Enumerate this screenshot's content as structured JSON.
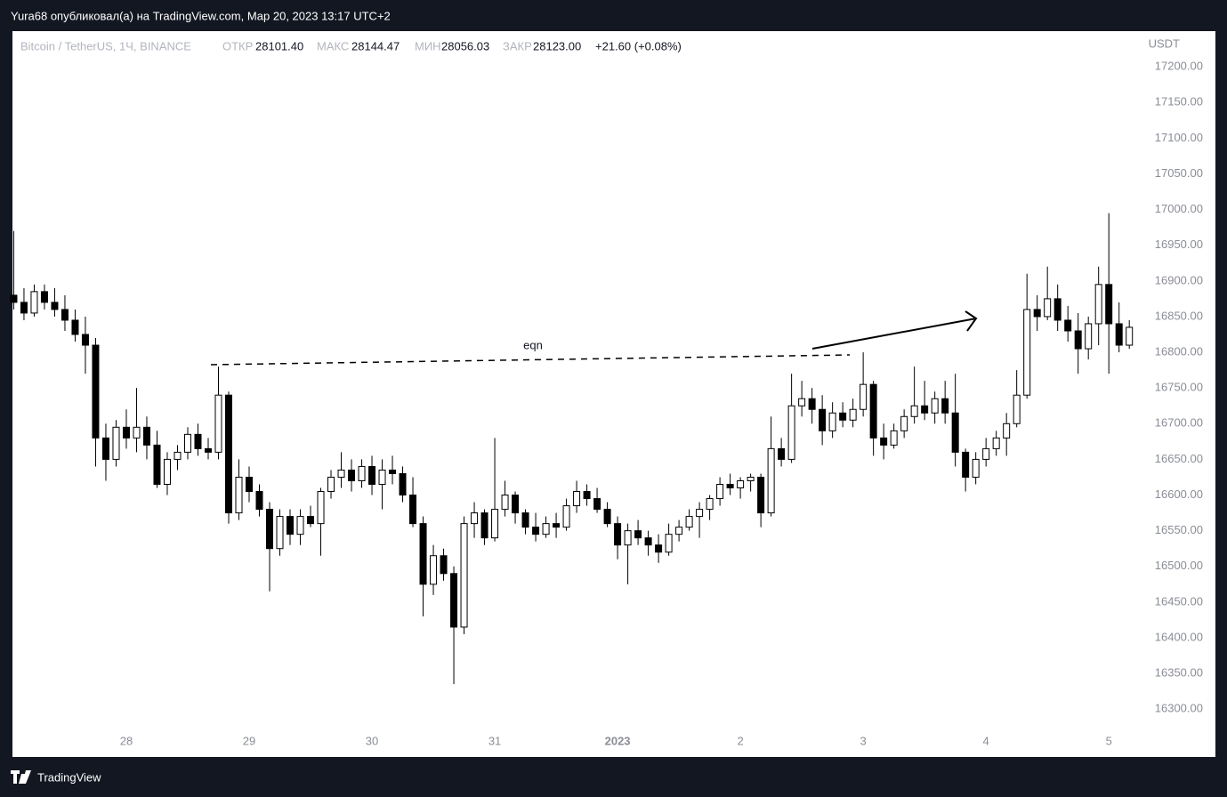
{
  "header": "Yura68 опубликовал(а) на TradingView.com, Мар 20, 2023 13:17 UTC+2",
  "footer": {
    "brand": "TradingView"
  },
  "chart_data": {
    "type": "candlestick",
    "symbol": "Bitcoin / TetherUS, 1Ч, BINANCE",
    "legend": {
      "open_label": "ОТКР",
      "open": "28101.40",
      "high_label": "МАКС",
      "high": "28144.47",
      "low_label": "МИН",
      "low": "28056.03",
      "close_label": "ЗАКР",
      "close": "28123.00",
      "change": "+21.60 (+0.08%)"
    },
    "y_unit": "USDT",
    "annotation": "eqn",
    "up_color": "#ffffff",
    "down_color": "#000000",
    "border_color": "#000000",
    "categories": [
      null,
      null,
      null,
      null,
      null,
      null,
      null,
      null,
      null,
      null,
      null,
      null,
      null,
      null,
      null,
      null,
      null,
      null,
      null,
      null,
      null,
      null,
      null,
      null,
      null,
      null,
      null,
      null,
      null,
      null,
      null,
      null,
      null,
      null,
      null,
      null,
      null,
      null,
      null,
      null,
      null,
      null,
      null,
      null,
      null,
      null,
      null,
      null,
      null,
      null,
      null,
      null,
      null,
      null,
      null,
      null,
      null,
      null,
      null,
      null,
      null,
      null,
      null,
      null,
      null,
      null,
      null,
      null,
      null,
      null,
      null,
      null,
      null,
      null,
      null,
      null,
      null,
      null,
      null,
      null,
      null,
      null,
      null,
      null,
      null,
      null,
      null,
      null,
      null,
      null,
      null,
      null,
      null,
      null,
      null,
      null,
      null,
      null,
      null,
      null,
      null,
      null,
      null,
      null,
      null,
      null,
      null,
      null,
      null,
      null
    ],
    "open": [
      16880,
      16870,
      16855,
      16885,
      16870,
      16860,
      16845,
      16825,
      16810,
      16680,
      16650,
      16695,
      16680,
      16695,
      16670,
      16615,
      16650,
      16660,
      16685,
      16665,
      16660,
      16740,
      16575,
      16625,
      16605,
      16580,
      16525,
      16570,
      16545,
      16570,
      16560,
      16605,
      16625,
      16635,
      16620,
      16640,
      16615,
      16635,
      16630,
      16600,
      16560,
      16475,
      16515,
      16490,
      16415,
      16560,
      16575,
      16540,
      16580,
      16600,
      16575,
      16555,
      16545,
      16560,
      16555,
      16585,
      16605,
      16595,
      16580,
      16560,
      16530,
      16550,
      16540,
      16530,
      16520,
      16545,
      16555,
      16570,
      16580,
      16595,
      16615,
      16610,
      16620,
      16625,
      16575,
      16665,
      16650,
      16725,
      16735,
      16720,
      16690,
      16715,
      16705,
      16720,
      16755,
      16680,
      16670,
      16690,
      16710,
      16725,
      16715,
      16735,
      16715,
      16660,
      16625,
      16650,
      16665,
      16680,
      16700,
      16740,
      16860,
      16850,
      16875,
      16845,
      16830,
      16805,
      16840,
      16895,
      16840,
      16810
    ],
    "high": [
      16970,
      16890,
      16895,
      16895,
      16890,
      16880,
      16860,
      16850,
      16820,
      16700,
      16705,
      16720,
      16750,
      16710,
      16690,
      16660,
      16670,
      16695,
      16700,
      16680,
      16780,
      16745,
      16650,
      16640,
      16615,
      16590,
      16580,
      16580,
      16580,
      16585,
      16610,
      16635,
      16660,
      16650,
      16650,
      16655,
      16650,
      16655,
      16640,
      16625,
      16570,
      16530,
      16525,
      16500,
      16570,
      16590,
      16580,
      16680,
      16620,
      16605,
      16580,
      16575,
      16570,
      16575,
      16595,
      16620,
      16615,
      16610,
      16590,
      16570,
      16560,
      16565,
      16550,
      16545,
      16560,
      16565,
      16580,
      16590,
      16600,
      16625,
      16630,
      16625,
      16630,
      16630,
      16710,
      16680,
      16770,
      16760,
      16750,
      16740,
      16730,
      16730,
      16735,
      16800,
      16760,
      16700,
      16700,
      16720,
      16780,
      16760,
      16745,
      16760,
      16770,
      16665,
      16660,
      16680,
      16690,
      16715,
      16775,
      16910,
      16880,
      16920,
      16895,
      16865,
      16855,
      16850,
      16920,
      16995,
      16870,
      16845
    ],
    "low": [
      16860,
      16845,
      16850,
      16860,
      16850,
      16830,
      16815,
      16770,
      16640,
      16620,
      16640,
      16665,
      16660,
      16650,
      16610,
      16600,
      16635,
      16650,
      16655,
      16650,
      16650,
      16560,
      16565,
      16590,
      16570,
      16465,
      16515,
      16530,
      16530,
      16555,
      16515,
      16595,
      16610,
      16605,
      16610,
      16600,
      16580,
      16615,
      16590,
      16555,
      16430,
      16460,
      16480,
      16335,
      16405,
      16540,
      16530,
      16535,
      16570,
      16560,
      16545,
      16535,
      16540,
      16540,
      16550,
      16575,
      16585,
      16575,
      16555,
      16510,
      16475,
      16530,
      16515,
      16505,
      16515,
      16535,
      16550,
      16540,
      16565,
      16585,
      16600,
      16595,
      16605,
      16555,
      16570,
      16640,
      16645,
      16710,
      16700,
      16670,
      16680,
      16695,
      16695,
      16710,
      16655,
      16650,
      16665,
      16680,
      16700,
      16705,
      16700,
      16700,
      16640,
      16605,
      16615,
      16640,
      16655,
      16655,
      16695,
      16735,
      16830,
      16845,
      16830,
      16815,
      16770,
      16790,
      16810,
      16770,
      16800,
      16805
    ],
    "close": [
      16870,
      16855,
      16885,
      16870,
      16860,
      16845,
      16825,
      16810,
      16680,
      16650,
      16695,
      16680,
      16695,
      16670,
      16615,
      16650,
      16660,
      16685,
      16665,
      16660,
      16740,
      16575,
      16625,
      16605,
      16580,
      16525,
      16570,
      16545,
      16570,
      16560,
      16605,
      16625,
      16635,
      16620,
      16640,
      16615,
      16635,
      16630,
      16600,
      16560,
      16475,
      16515,
      16490,
      16415,
      16560,
      16575,
      16540,
      16580,
      16600,
      16575,
      16555,
      16545,
      16560,
      16555,
      16585,
      16605,
      16595,
      16580,
      16560,
      16530,
      16550,
      16540,
      16530,
      16520,
      16545,
      16555,
      16570,
      16580,
      16595,
      16615,
      16610,
      16620,
      16625,
      16575,
      16665,
      16650,
      16725,
      16735,
      16720,
      16690,
      16715,
      16705,
      16720,
      16755,
      16680,
      16670,
      16690,
      16710,
      16725,
      16715,
      16735,
      16715,
      16660,
      16625,
      16650,
      16665,
      16680,
      16700,
      16740,
      16860,
      16850,
      16875,
      16845,
      16830,
      16805,
      16840,
      16895,
      16840,
      16810,
      16835
    ],
    "xlim": [
      -0.3,
      110.2
    ],
    "xticks": [
      {
        "value": 11,
        "label": "28"
      },
      {
        "value": 23,
        "label": "29"
      },
      {
        "value": 35,
        "label": "30"
      },
      {
        "value": 47,
        "label": "31"
      },
      {
        "value": 59,
        "label": "2023"
      },
      {
        "value": 71,
        "label": "2"
      },
      {
        "value": 83,
        "label": "3"
      },
      {
        "value": 95,
        "label": "4"
      },
      {
        "value": 107,
        "label": "5"
      }
    ],
    "ylim": [
      16233,
      17250
    ],
    "yticks": [
      {
        "value": 16300,
        "label": "16300.00"
      },
      {
        "value": 16350,
        "label": "16350.00"
      },
      {
        "value": 16400,
        "label": "16400.00"
      },
      {
        "value": 16450,
        "label": "16450.00"
      },
      {
        "value": 16500,
        "label": "16500.00"
      },
      {
        "value": 16550,
        "label": "16550.00"
      },
      {
        "value": 16600,
        "label": "16600.00"
      },
      {
        "value": 16650,
        "label": "16650.00"
      },
      {
        "value": 16700,
        "label": "16700.00"
      },
      {
        "value": 16750,
        "label": "16750.00"
      },
      {
        "value": 16800,
        "label": "16800.00"
      },
      {
        "value": 16850,
        "label": "16850.00"
      },
      {
        "value": 16900,
        "label": "16900.00"
      },
      {
        "value": 16950,
        "label": "16950.00"
      },
      {
        "value": 17000,
        "label": "17000.00"
      },
      {
        "value": 17050,
        "label": "17050.00"
      },
      {
        "value": 17100,
        "label": "17100.00"
      },
      {
        "value": 17150,
        "label": "17150.00"
      },
      {
        "value": 17200,
        "label": "17200.00"
      }
    ],
    "grid": false
  }
}
